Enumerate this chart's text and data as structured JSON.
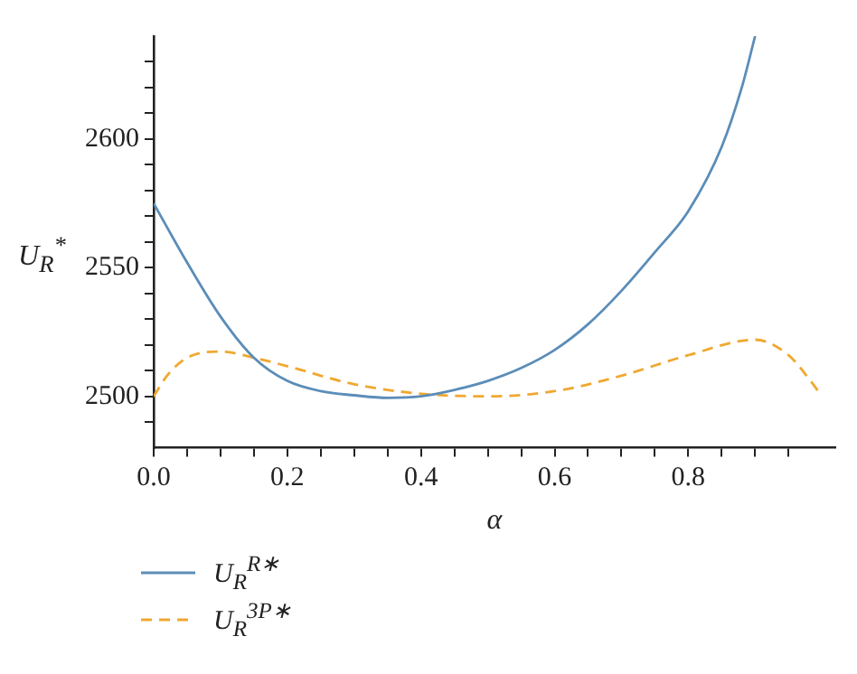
{
  "chart_data": {
    "type": "line",
    "xlabel": "α",
    "ylabel": "U$_{R}$$^{*}$",
    "xlim": [
      0,
      1.02
    ],
    "ylim": [
      2480,
      2640
    ],
    "xticks": [
      {
        "value": 0,
        "label": "0.0"
      },
      {
        "value": 0.05,
        "label": null
      },
      {
        "value": 0.1,
        "label": null
      },
      {
        "value": 0.15,
        "label": null
      },
      {
        "value": 0.2,
        "label": "0.2"
      },
      {
        "value": 0.25,
        "label": null
      },
      {
        "value": 0.3,
        "label": null
      },
      {
        "value": 0.35,
        "label": null
      },
      {
        "value": 0.4,
        "label": "0.4"
      },
      {
        "value": 0.45,
        "label": null
      },
      {
        "value": 0.5,
        "label": null
      },
      {
        "value": 0.55,
        "label": null
      },
      {
        "value": 0.6,
        "label": "0.6"
      },
      {
        "value": 0.65,
        "label": null
      },
      {
        "value": 0.7,
        "label": null
      },
      {
        "value": 0.75,
        "label": null
      },
      {
        "value": 0.8,
        "label": "0.8"
      },
      {
        "value": 0.85,
        "label": null
      },
      {
        "value": 0.9,
        "label": null
      },
      {
        "value": 0.95,
        "label": null
      }
    ],
    "yticks": [
      {
        "value": 2490,
        "label": null
      },
      2500,
      {
        "value": 2510,
        "label": null
      },
      {
        "value": 2520,
        "label": null
      },
      {
        "value": 2530,
        "label": null
      },
      {
        "value": 2540,
        "label": null
      },
      2550,
      {
        "value": 2560,
        "label": null
      },
      {
        "value": 2570,
        "label": null
      },
      {
        "value": 2580,
        "label": null
      },
      {
        "value": 2590,
        "label": null
      },
      2600,
      {
        "value": 2610,
        "label": null
      },
      {
        "value": 2620,
        "label": null
      },
      {
        "value": 2630,
        "label": null
      }
    ],
    "grid": false,
    "legend": "bottom left",
    "marker": "none",
    "series": [
      {
        "name": "U$_{R}$$^{R∗}$",
        "color": "#5b8db8",
        "line_style": "solid",
        "x": [
          0,
          0.05,
          0.1,
          0.15,
          0.2,
          0.25,
          0.3,
          0.35,
          0.4,
          0.45,
          0.5,
          0.55,
          0.6,
          0.65,
          0.7,
          0.75,
          0.8,
          0.85,
          0.88,
          0.9
        ],
        "values": [
          2575,
          2552,
          2531,
          2515,
          2506,
          2502,
          2500.4,
          2499.4,
          2500,
          2502.5,
          2506,
          2511,
          2518,
          2528,
          2541,
          2556,
          2572,
          2597,
          2620,
          2640
        ]
      },
      {
        "name": "U$_{R}$$^{3P∗}$",
        "color": "#f0a830",
        "line_style": "dashed",
        "x": [
          0,
          0.02,
          0.05,
          0.1,
          0.15,
          0.2,
          0.3,
          0.4,
          0.5,
          0.6,
          0.7,
          0.8,
          0.9,
          0.95,
          0.98,
          1.0
        ],
        "values": [
          2500,
          2508,
          2515,
          2517.4,
          2515,
          2511.7,
          2504.7,
          2501,
          2500,
          2502,
          2508,
          2516,
          2522,
          2516,
          2507,
          2500
        ]
      }
    ]
  }
}
